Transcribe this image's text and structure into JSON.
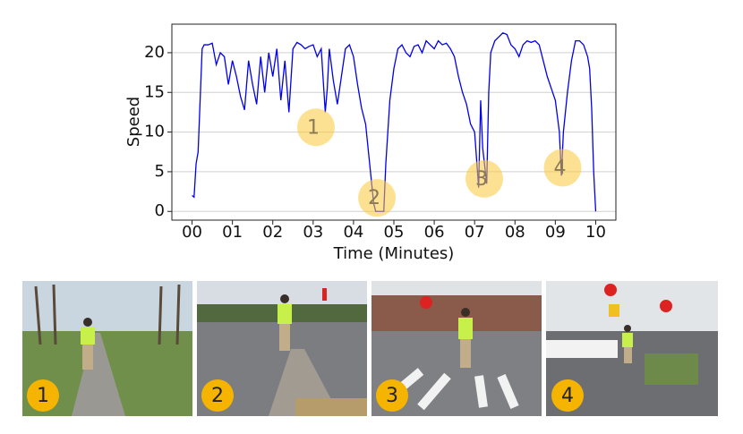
{
  "chart_data": {
    "type": "line",
    "x_label": "Time (Minutes)",
    "y_label": "Speed",
    "xlim": [
      -0.5,
      10.5
    ],
    "ylim": [
      -1.1,
      23.6
    ],
    "xticks": [
      {
        "value": 0,
        "label": "00"
      },
      {
        "value": 1,
        "label": "01"
      },
      {
        "value": 2,
        "label": "02"
      },
      {
        "value": 3,
        "label": "03"
      },
      {
        "value": 4,
        "label": "04"
      },
      {
        "value": 5,
        "label": "05"
      },
      {
        "value": 6,
        "label": "06"
      },
      {
        "value": 7,
        "label": "07"
      },
      {
        "value": 8,
        "label": "08"
      },
      {
        "value": 9,
        "label": "09"
      },
      {
        "value": 10,
        "label": "10"
      }
    ],
    "yticks": [
      0,
      5,
      10,
      15,
      20
    ],
    "grid": true,
    "color": "#0000ee",
    "x": [
      0,
      0.05,
      0.1,
      0.15,
      0.2,
      0.25,
      0.3,
      0.4,
      0.5,
      0.6,
      0.7,
      0.8,
      0.9,
      1.0,
      1.1,
      1.2,
      1.3,
      1.4,
      1.5,
      1.6,
      1.7,
      1.8,
      1.9,
      2.0,
      2.1,
      2.2,
      2.3,
      2.4,
      2.5,
      2.6,
      2.7,
      2.8,
      2.9,
      3.0,
      3.1,
      3.2,
      3.3,
      3.35,
      3.4,
      3.5,
      3.6,
      3.7,
      3.8,
      3.9,
      4.0,
      4.1,
      4.2,
      4.3,
      4.4,
      4.5,
      4.55,
      4.6,
      4.7,
      4.75,
      4.8,
      4.9,
      5.0,
      5.1,
      5.2,
      5.3,
      5.4,
      5.5,
      5.6,
      5.7,
      5.8,
      5.9,
      6.0,
      6.1,
      6.2,
      6.3,
      6.4,
      6.5,
      6.6,
      6.7,
      6.8,
      6.9,
      7.0,
      7.1,
      7.15,
      7.2,
      7.3,
      7.35,
      7.4,
      7.5,
      7.6,
      7.7,
      7.8,
      7.9,
      8.0,
      8.1,
      8.2,
      8.3,
      8.4,
      8.5,
      8.6,
      8.7,
      8.8,
      8.9,
      9.0,
      9.1,
      9.15,
      9.2,
      9.3,
      9.4,
      9.5,
      9.6,
      9.7,
      9.8,
      9.85,
      9.9,
      9.95,
      10.0
    ],
    "values": [
      2,
      1.8,
      6,
      7.5,
      14,
      20.5,
      21,
      21,
      21.2,
      18.5,
      20,
      19.5,
      16,
      19,
      17,
      14.5,
      12.8,
      19,
      16,
      13.5,
      19.5,
      15,
      20,
      17,
      20.5,
      14,
      19,
      12.5,
      20.5,
      21.3,
      21,
      20.5,
      20.8,
      21,
      19.5,
      20.5,
      12.5,
      15.5,
      20.5,
      16.5,
      13.5,
      17,
      20.5,
      21,
      19.5,
      16,
      13,
      11,
      6,
      1,
      0,
      0,
      0,
      0,
      6,
      14,
      18,
      20.5,
      21,
      20,
      19.5,
      20.8,
      21,
      20,
      21.5,
      21,
      20.5,
      21.5,
      21,
      21.2,
      20.5,
      19.5,
      17,
      15,
      13.5,
      11,
      10,
      3,
      14,
      8,
      3.5,
      15,
      20,
      21.5,
      22,
      22.5,
      22.3,
      21,
      20.5,
      19.5,
      21,
      21.5,
      21.3,
      21.5,
      21,
      19,
      17,
      15.5,
      14,
      10,
      4.5,
      10,
      15,
      19,
      21.5,
      21.5,
      21,
      19.5,
      18,
      13,
      5,
      0
    ],
    "annotations": [
      {
        "label": "1",
        "x": 3.07,
        "y": 10.6
      },
      {
        "label": "2",
        "x": 4.58,
        "y": 1.7
      },
      {
        "label": "3",
        "x": 7.24,
        "y": 4.1
      },
      {
        "label": "4",
        "x": 9.18,
        "y": 5.5
      }
    ]
  },
  "photos": [
    {
      "label": "1"
    },
    {
      "label": "2"
    },
    {
      "label": "3"
    },
    {
      "label": "4"
    }
  ]
}
